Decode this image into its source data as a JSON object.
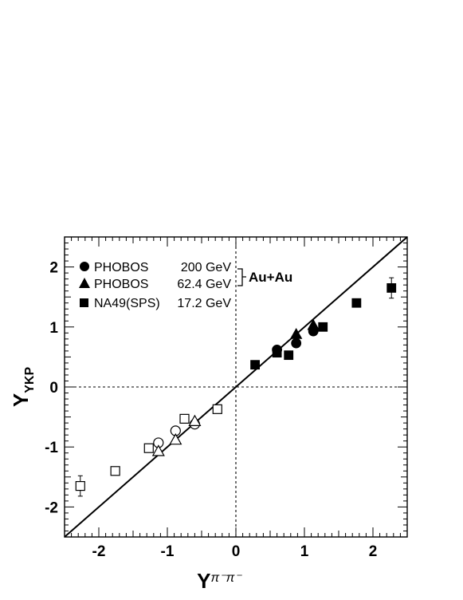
{
  "chart_data": {
    "type": "scatter",
    "title": "",
    "xlabel": {
      "main": "Y",
      "sub": "π⁻π⁻"
    },
    "ylabel": {
      "main": "Y",
      "sub": "YKP"
    },
    "xlim": [
      -2.5,
      2.5
    ],
    "ylim": [
      -2.5,
      2.5
    ],
    "major_ticks": [
      -2,
      -1,
      0,
      1,
      2
    ],
    "tick_labels": [
      "-2",
      "-1",
      "0",
      "1",
      "2"
    ],
    "grid": false,
    "legend_placement": "top-left",
    "annotation": "Au+Au",
    "reference_lines": [
      {
        "kind": "y=x",
        "style": "solid"
      },
      {
        "kind": "x=0",
        "style": "dotted"
      },
      {
        "kind": "y=0",
        "style": "dotted"
      }
    ],
    "series": [
      {
        "name": "PHOBOS",
        "energy": "200 GeV",
        "marker": "circle",
        "filled_points": [
          [
            0.6,
            0.62
          ],
          [
            0.88,
            0.73
          ],
          [
            1.13,
            0.93
          ]
        ],
        "open_points": [
          [
            -1.13,
            -0.93
          ],
          [
            -0.88,
            -0.73
          ],
          [
            -0.6,
            -0.62
          ]
        ]
      },
      {
        "name": "PHOBOS",
        "energy": "62.4 GeV",
        "marker": "triangle",
        "filled_points": [
          [
            0.88,
            0.88
          ],
          [
            1.13,
            1.03
          ]
        ],
        "open_points": [
          [
            -1.13,
            -1.07
          ],
          [
            -0.88,
            -0.88
          ],
          [
            -0.6,
            -0.57
          ]
        ]
      },
      {
        "name": "NA49(SPS)",
        "energy": "17.2 GeV",
        "marker": "square",
        "filled_points": [
          [
            0.28,
            0.37
          ],
          [
            0.6,
            0.57
          ],
          [
            0.77,
            0.53
          ],
          [
            1.27,
            1.0
          ],
          [
            1.76,
            1.4
          ],
          [
            2.27,
            1.65
          ]
        ],
        "open_points": [
          [
            -2.27,
            -1.65
          ],
          [
            -1.76,
            -1.4
          ],
          [
            -1.27,
            -1.02
          ],
          [
            -0.75,
            -0.53
          ],
          [
            -0.27,
            -0.37
          ]
        ],
        "error_bars": [
          {
            "x": 2.27,
            "y": 1.65,
            "err": 0.17
          },
          {
            "x": -2.27,
            "y": -1.65,
            "err": 0.17
          }
        ]
      }
    ]
  }
}
